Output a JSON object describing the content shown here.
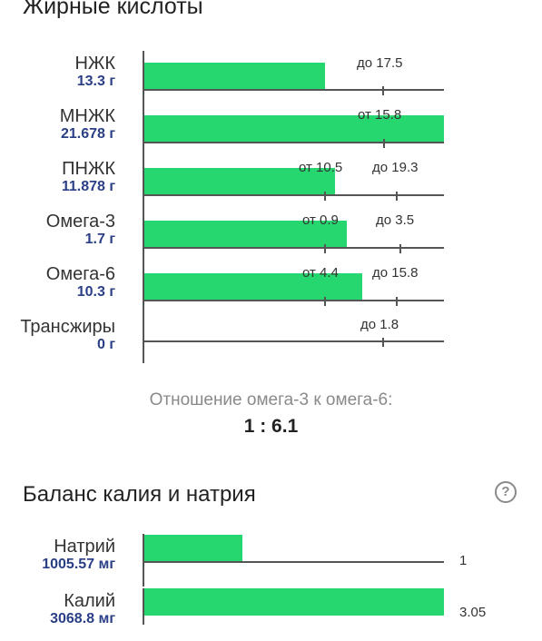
{
  "fatty_acids": {
    "title": "Жирные кислоты",
    "rows": [
      {
        "name": "НЖК",
        "amount": "13.3 г",
        "value": 13.3,
        "labels": [
          "до 17.5"
        ]
      },
      {
        "name": "МНЖК",
        "amount": "21.678 г",
        "value": 21.678,
        "labels": [
          "от 15.8"
        ]
      },
      {
        "name": "ПНЖК",
        "amount": "11.878 г",
        "value": 11.878,
        "labels": [
          "от 10.5",
          "до 19.3"
        ]
      },
      {
        "name": "Омега-3",
        "amount": "1.7 г",
        "value": 1.7,
        "labels": [
          "от 0.9",
          "до 3.5"
        ]
      },
      {
        "name": "Омега-6",
        "amount": "10.3 г",
        "value": 10.3,
        "labels": [
          "от 4.4",
          "до 15.8"
        ]
      },
      {
        "name": "Трансжиры",
        "amount": "0 г",
        "value": 0,
        "labels": [
          "до 1.8"
        ]
      }
    ],
    "ratio_label": "Отношение омега-3 к омега-6:",
    "ratio_value": "1 : 6.1"
  },
  "potassium_sodium": {
    "title": "Баланс калия и натрия",
    "help_icon": "?",
    "rows": [
      {
        "name": "Натрий",
        "amount": "1005.57 мг",
        "value_label": "1"
      },
      {
        "name": "Калий",
        "amount": "3068.8 мг",
        "value_label": "3.05"
      }
    ]
  },
  "colors": {
    "bar": "#26d66e",
    "amount": "#2a3f86"
  }
}
